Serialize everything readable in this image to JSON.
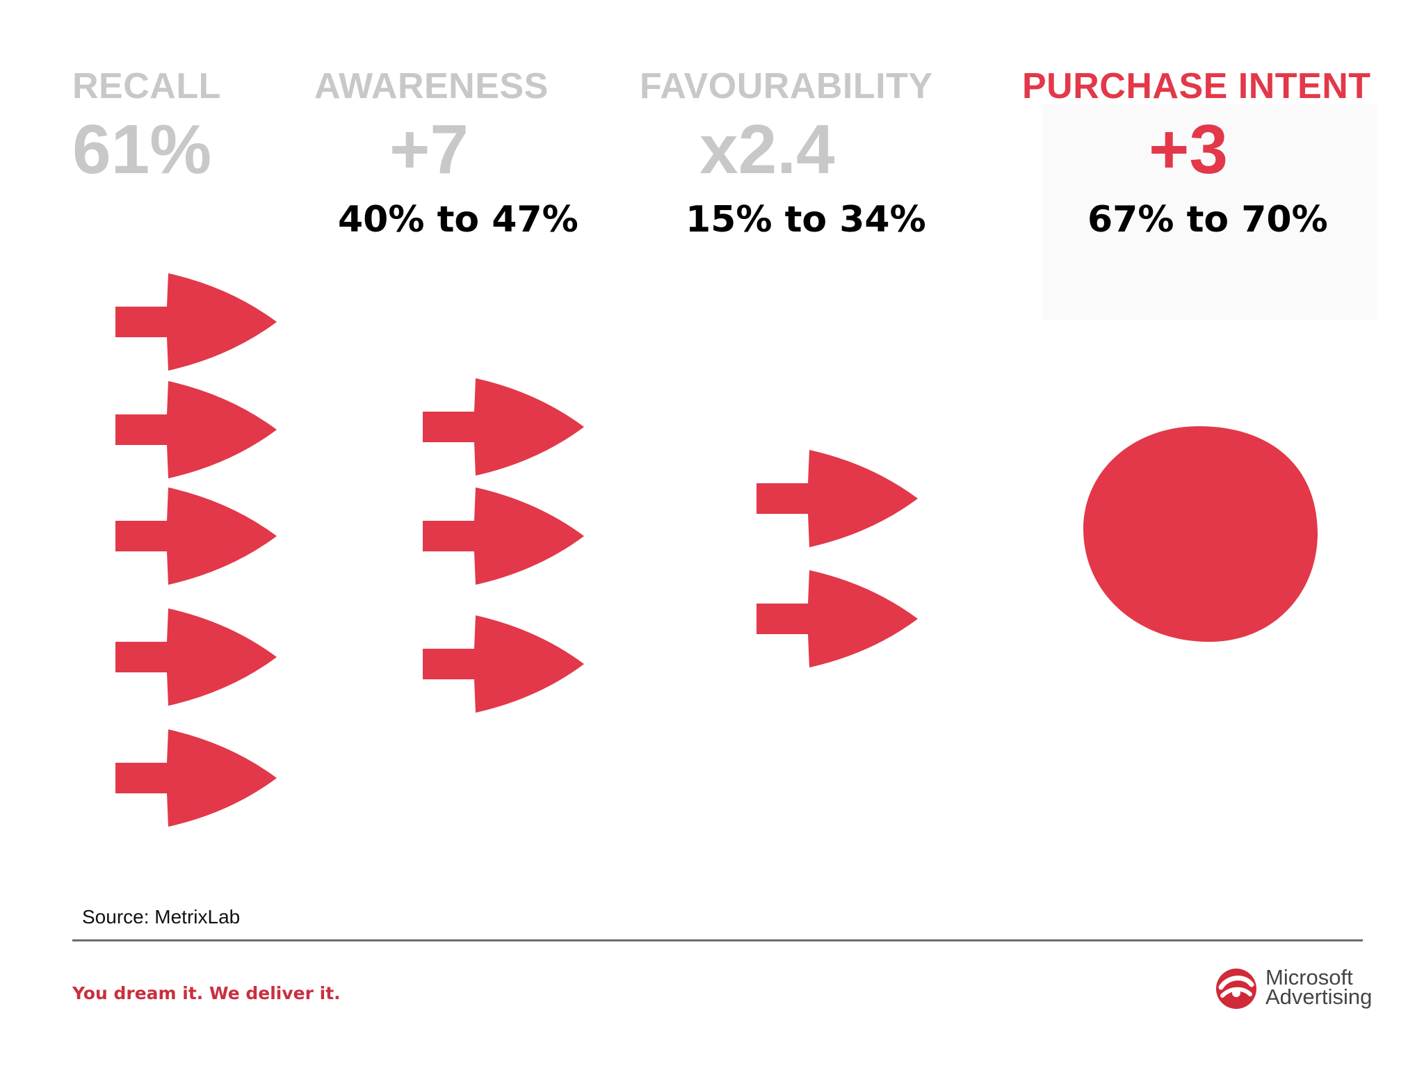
{
  "columns": [
    {
      "id": "recall",
      "label": "RECALL",
      "value": "61%",
      "range": "",
      "arrow_count": 5
    },
    {
      "id": "awareness",
      "label": "AWARENESS",
      "value": "+7",
      "range": "40% to 47%",
      "arrow_count": 3
    },
    {
      "id": "favourability",
      "label": "FAVOURABILITY",
      "value": "x2.4",
      "range": "15% to 34%",
      "arrow_count": 2
    },
    {
      "id": "purchase-intent",
      "label": "PURCHASE INTENT",
      "value": "+3",
      "range": "67% to 70%",
      "arrow_count": 0
    }
  ],
  "colors": {
    "accent": "#e23849",
    "muted_label": "#c8c8c8",
    "range_text": "#000000"
  },
  "source": "Source: MetrixLab",
  "footer": {
    "tagline": "You dream it. We deliver it.",
    "brand_line1": "Microsoft",
    "brand_line2": "Advertising",
    "logo_icon": "microsoft-advertising-logo-icon"
  }
}
